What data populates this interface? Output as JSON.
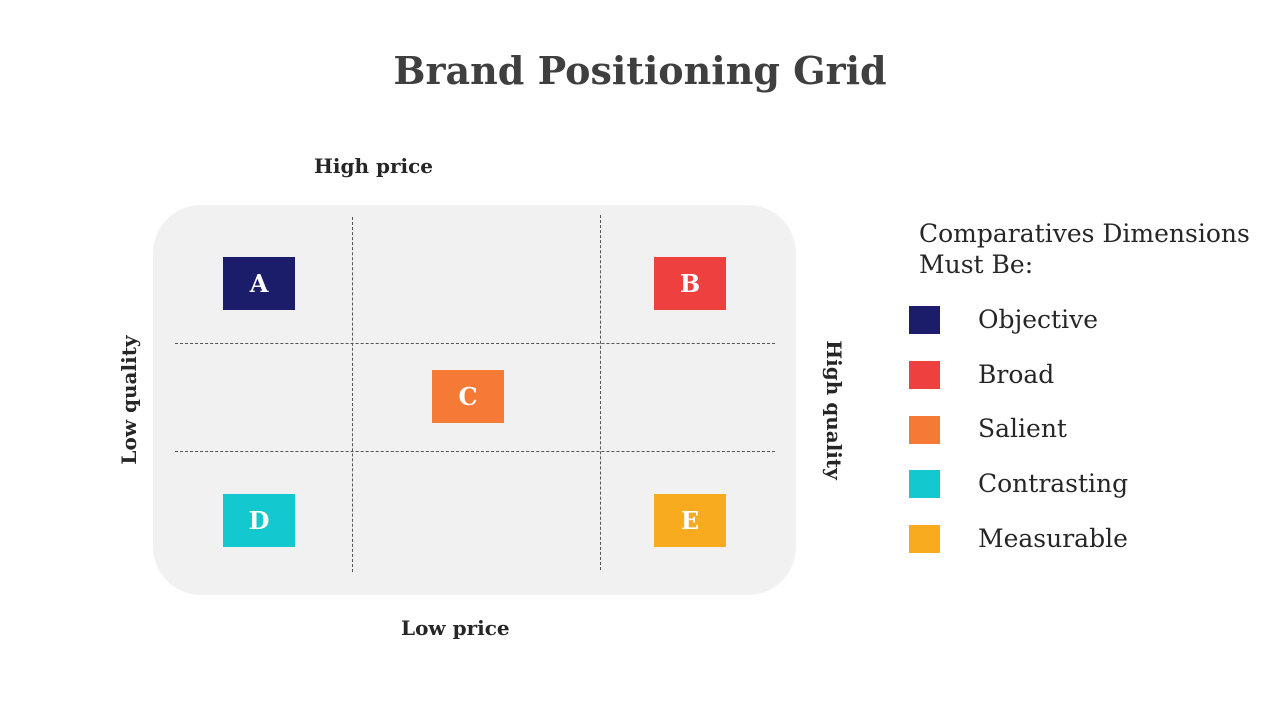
{
  "title": "Brand Positioning Grid",
  "axes": {
    "top": "High price",
    "bottom": "Low price",
    "left": "Low quality",
    "right": "High quality"
  },
  "brands": [
    {
      "label": "A",
      "color": "#1b1d6a",
      "quadrant": "top-left"
    },
    {
      "label": "B",
      "color": "#ef4040",
      "quadrant": "top-right"
    },
    {
      "label": "C",
      "color": "#f47a35",
      "quadrant": "center"
    },
    {
      "label": "D",
      "color": "#14c8cf",
      "quadrant": "bottom-left"
    },
    {
      "label": "E",
      "color": "#f9ab20",
      "quadrant": "bottom-right"
    }
  ],
  "legend": {
    "title_line1": "Comparatives Dimensions",
    "title_line2": "Must Be:",
    "items": [
      {
        "label": "Objective",
        "color": "#1b1d6a"
      },
      {
        "label": "Broad",
        "color": "#ef4040"
      },
      {
        "label": "Salient",
        "color": "#f47a35"
      },
      {
        "label": "Contrasting",
        "color": "#14c8cf"
      },
      {
        "label": "Measurable",
        "color": "#f9ab20"
      }
    ]
  }
}
